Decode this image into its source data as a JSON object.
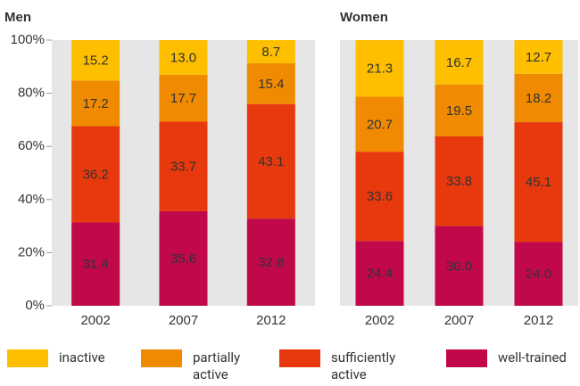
{
  "chart_data": [
    {
      "type": "bar",
      "stacked": true,
      "title": "Men",
      "categories": [
        "2002",
        "2007",
        "2012"
      ],
      "ylim": [
        0,
        100
      ],
      "yticks": [
        {
          "value": 0,
          "label": "0%"
        },
        {
          "value": 20,
          "label": "20%"
        },
        {
          "value": 40,
          "label": "40%"
        },
        {
          "value": 60,
          "label": "60%"
        },
        {
          "value": 80,
          "label": "80%"
        },
        {
          "value": 100,
          "label": "100%"
        }
      ],
      "series": [
        {
          "name": "inactive",
          "color": "#fdbf00",
          "values": [
            15.2,
            13.0,
            8.7
          ],
          "value_labels": [
            "15.2",
            "13.0",
            "8.7"
          ]
        },
        {
          "name": "partially active",
          "color": "#f08a00",
          "values": [
            17.2,
            17.7,
            15.4
          ],
          "value_labels": [
            "17.2",
            "17.7",
            "15.4"
          ]
        },
        {
          "name": "sufficiently active",
          "color": "#e8380d",
          "values": [
            36.2,
            33.7,
            43.1
          ],
          "value_labels": [
            "36.2",
            "33.7",
            "43.1"
          ]
        },
        {
          "name": "well-trained",
          "color": "#c0084a",
          "values": [
            31.4,
            35.6,
            32.8
          ],
          "value_labels": [
            "31.4",
            "35.6",
            "32.8"
          ]
        }
      ]
    },
    {
      "type": "bar",
      "stacked": true,
      "title": "Women",
      "categories": [
        "2002",
        "2007",
        "2012"
      ],
      "ylim": [
        0,
        100
      ],
      "series": [
        {
          "color": "#fdbf00",
          "values": [
            21.3,
            16.7,
            12.7
          ],
          "value_labels": [
            "21.3",
            "16.7",
            "12.7"
          ]
        },
        {
          "color": "#f08a00",
          "values": [
            20.7,
            19.5,
            18.2
          ],
          "value_labels": [
            "20.7",
            "19.5",
            "18.2"
          ]
        },
        {
          "color": "#e8380d",
          "values": [
            33.6,
            33.8,
            45.1
          ],
          "value_labels": [
            "33.6",
            "33.8",
            "45.1"
          ]
        },
        {
          "color": "#c0084a",
          "values": [
            24.4,
            30.0,
            24.0
          ],
          "value_labels": [
            "24.4",
            "30.0",
            "24.0"
          ]
        }
      ]
    }
  ]
}
